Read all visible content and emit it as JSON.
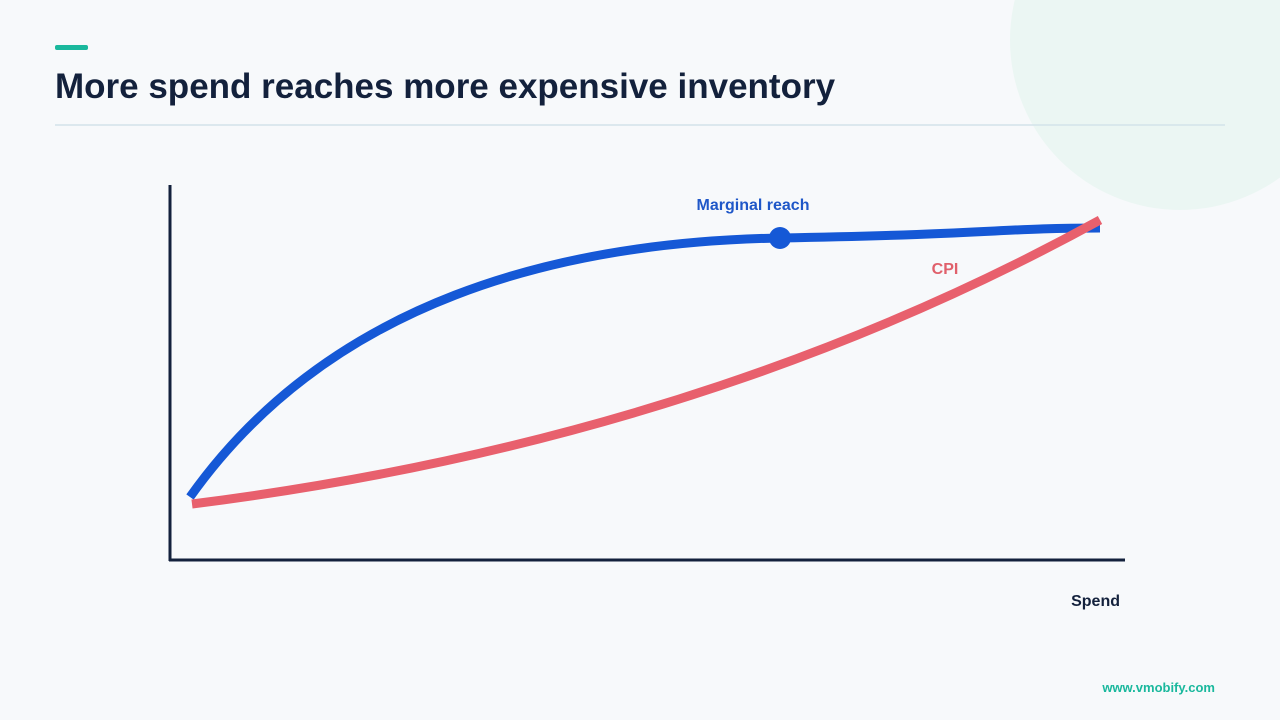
{
  "header": {
    "title": "More spend reaches more expensive inventory"
  },
  "diagram": {
    "curve_labels": [
      "Marginal reach",
      "CPI"
    ],
    "x_axis_label": "Spend"
  },
  "footer": {
    "url": "www.vmobify.com"
  }
}
